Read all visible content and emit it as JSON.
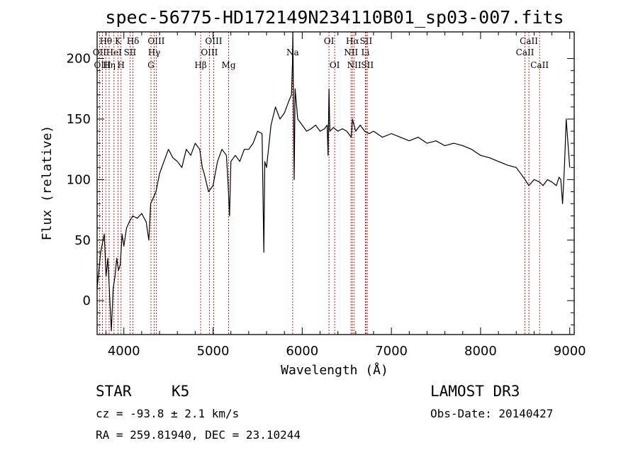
{
  "chart_data": {
    "type": "line",
    "title": "spec-56775-HD172149N234110B01_sp03-007.fits",
    "xlabel": "Wavelength (Å)",
    "ylabel": "Flux (relative)",
    "xlim": [
      3700,
      9050
    ],
    "ylim": [
      -28,
      222
    ],
    "xticks": [
      4000,
      5000,
      6000,
      7000,
      8000,
      9000
    ],
    "yticks": [
      0,
      50,
      100,
      150,
      200
    ],
    "series": [
      {
        "name": "spectrum",
        "x": [
          3700,
          3740,
          3780,
          3800,
          3820,
          3840,
          3860,
          3880,
          3900,
          3920,
          3940,
          3960,
          3980,
          4000,
          4030,
          4060,
          4100,
          4150,
          4200,
          4250,
          4280,
          4300,
          4330,
          4360,
          4400,
          4450,
          4500,
          4550,
          4600,
          4650,
          4700,
          4750,
          4800,
          4850,
          4880,
          4900,
          4950,
          5000,
          5050,
          5100,
          5150,
          5170,
          5185,
          5200,
          5250,
          5300,
          5350,
          5400,
          5450,
          5500,
          5550,
          5570,
          5580,
          5600,
          5650,
          5700,
          5750,
          5800,
          5850,
          5880,
          5890,
          5895,
          5900,
          5910,
          5920,
          5950,
          6000,
          6050,
          6100,
          6150,
          6200,
          6250,
          6280,
          6290,
          6300,
          6310,
          6350,
          6400,
          6450,
          6500,
          6550,
          6563,
          6600,
          6650,
          6700,
          6750,
          6800,
          6900,
          7000,
          7100,
          7200,
          7300,
          7400,
          7500,
          7600,
          7700,
          7800,
          7900,
          8000,
          8100,
          8200,
          8300,
          8400,
          8450,
          8498,
          8542,
          8600,
          8662,
          8700,
          8750,
          8800,
          8850,
          8880,
          8900,
          8920,
          8940,
          8960,
          8980,
          9000
        ],
        "y": [
          10,
          40,
          55,
          20,
          35,
          5,
          -25,
          10,
          20,
          35,
          25,
          30,
          55,
          45,
          60,
          65,
          70,
          68,
          72,
          65,
          50,
          80,
          85,
          90,
          105,
          115,
          125,
          118,
          115,
          110,
          125,
          120,
          130,
          125,
          110,
          105,
          90,
          95,
          115,
          125,
          120,
          95,
          70,
          115,
          120,
          115,
          125,
          125,
          130,
          140,
          138,
          40,
          115,
          110,
          145,
          160,
          150,
          155,
          165,
          170,
          195,
          222,
          185,
          100,
          175,
          150,
          145,
          140,
          142,
          145,
          140,
          142,
          145,
          120,
          175,
          140,
          143,
          140,
          142,
          140,
          135,
          150,
          140,
          145,
          140,
          138,
          140,
          135,
          138,
          135,
          132,
          135,
          130,
          132,
          128,
          130,
          128,
          125,
          120,
          118,
          115,
          112,
          110,
          105,
          100,
          95,
          100,
          98,
          95,
          100,
          98,
          95,
          102,
          100,
          80,
          110,
          150,
          130,
          110
        ]
      }
    ],
    "line_markers": [
      {
        "label": "Hθ",
        "x": 3798,
        "row": 1
      },
      {
        "label": "OII",
        "x": 3727,
        "row": 2
      },
      {
        "label": "OIII",
        "x": 3760,
        "row": 3
      },
      {
        "label": "K",
        "x": 3934,
        "row": 1
      },
      {
        "label": "HeI",
        "x": 3889,
        "row": 2
      },
      {
        "label": "Hη",
        "x": 3835,
        "row": 3
      },
      {
        "label": "H",
        "x": 3968,
        "row": 3
      },
      {
        "label": "Hδ",
        "x": 4102,
        "row": 1
      },
      {
        "label": "SII",
        "x": 4069,
        "row": 2
      },
      {
        "label": "OIII",
        "x": 4363,
        "row": 1
      },
      {
        "label": "Hγ",
        "x": 4340,
        "row": 2
      },
      {
        "label": "G",
        "x": 4304,
        "row": 3
      },
      {
        "label": "Hβ",
        "x": 4861,
        "row": 3
      },
      {
        "label": "OIII",
        "x": 5007,
        "row": 1
      },
      {
        "label": "OIII",
        "x": 4959,
        "row": 2
      },
      {
        "label": "Mg",
        "x": 5175,
        "row": 3
      },
      {
        "label": "Na",
        "x": 5893,
        "row": 2
      },
      {
        "label": "OI",
        "x": 6300,
        "row": 1
      },
      {
        "label": "OI",
        "x": 6364,
        "row": 3
      },
      {
        "label": "Hα",
        "x": 6563,
        "row": 1
      },
      {
        "label": "SII",
        "x": 6716,
        "row": 1
      },
      {
        "label": "NII",
        "x": 6548,
        "row": 2
      },
      {
        "label": "Li",
        "x": 6708,
        "row": 2
      },
      {
        "label": "NII",
        "x": 6583,
        "row": 3
      },
      {
        "label": "SII",
        "x": 6731,
        "row": 3
      },
      {
        "label": "CaII",
        "x": 8542,
        "row": 1
      },
      {
        "label": "CaII",
        "x": 8498,
        "row": 2
      },
      {
        "label": "CaII",
        "x": 8662,
        "row": 3
      }
    ]
  },
  "info": {
    "class_label": "STAR",
    "subclass": "K5",
    "survey": "LAMOST DR3",
    "redshift": "cz = -93.8 ± 2.1 km/s",
    "obs_date": "Obs-Date: 20140427",
    "coords": "RA = 259.81940, DEC =  23.10244"
  },
  "colors": {
    "spectrum": "#000000",
    "marker_line": "#cc0000",
    "axis": "#000000",
    "background": "#ffffff"
  }
}
